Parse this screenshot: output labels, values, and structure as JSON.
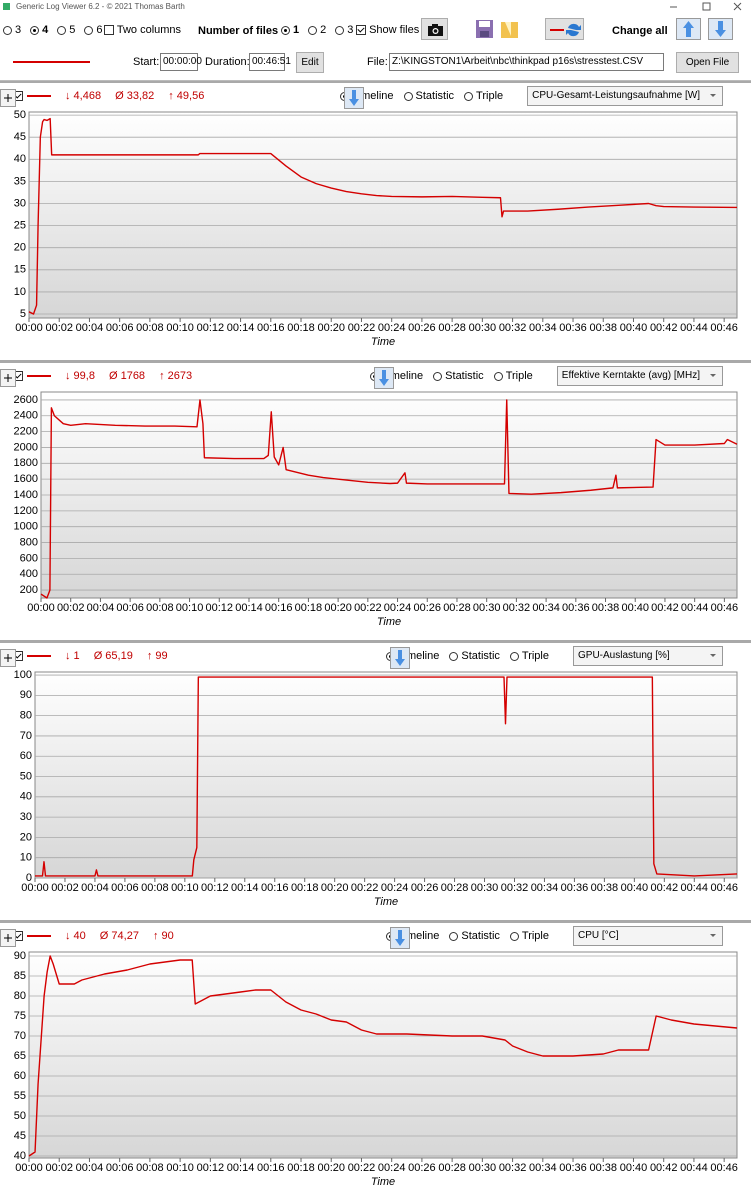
{
  "window": {
    "title": "Generic Log Viewer 6.2 - © 2021 Thomas Barth"
  },
  "toolbar": {
    "columns": [
      "3",
      "4",
      "5",
      "6"
    ],
    "selected_column": 1,
    "two_columns": "Two columns",
    "number_of_files_label": "Number of files",
    "files": [
      "1",
      "2",
      "3"
    ],
    "selected_file": 0,
    "show_files": "Show files",
    "change_all": "Change all",
    "start_label": "Start:",
    "start": "00:00:00",
    "duration_label": "Duration:",
    "duration": "00:46:51",
    "edit": "Edit",
    "file_label": "File:",
    "file": "Z:\\KINGSTON1\\Arbeit\\nbc\\thinkpad p16s\\stresstest.CSV",
    "open_file": "Open File"
  },
  "chart_data": [
    {
      "type": "line",
      "title": "CPU-Gesamt-Leistungsaufnahme [W]",
      "stats": [
        "↓ 4,468",
        "Ø 33,82",
        "↑ 49,56"
      ],
      "view_options": [
        "Timeline",
        "Statistic",
        "Triple"
      ],
      "selected_view": 0,
      "xlabel": "Time",
      "color": "#d40000",
      "grid": true,
      "xlim": [
        0,
        46.85
      ],
      "ylim": [
        4.1,
        50.7
      ],
      "yticks": [
        5,
        10,
        15,
        20,
        25,
        30,
        35,
        40,
        45,
        50
      ],
      "xticks": [
        {
          "value": 0,
          "label": "00:00"
        },
        {
          "value": 2,
          "label": "00:02"
        },
        {
          "value": 4,
          "label": "00:04"
        },
        {
          "value": 6,
          "label": "00:06"
        },
        {
          "value": 8,
          "label": "00:08"
        },
        {
          "value": 10,
          "label": "00:10"
        },
        {
          "value": 12,
          "label": "00:12"
        },
        {
          "value": 14,
          "label": "00:14"
        },
        {
          "value": 16,
          "label": "00:16"
        },
        {
          "value": 18,
          "label": "00:18"
        },
        {
          "value": 20,
          "label": "00:20"
        },
        {
          "value": 22,
          "label": "00:22"
        },
        {
          "value": 24,
          "label": "00:24"
        },
        {
          "value": 26,
          "label": "00:26"
        },
        {
          "value": 28,
          "label": "00:28"
        },
        {
          "value": 30,
          "label": "00:30"
        },
        {
          "value": 32,
          "label": "00:32"
        },
        {
          "value": 34,
          "label": "00:34"
        },
        {
          "value": 36,
          "label": "00:36"
        },
        {
          "value": 38,
          "label": "00:38"
        },
        {
          "value": 40,
          "label": "00:40"
        },
        {
          "value": 42,
          "label": "00:42"
        },
        {
          "value": 44,
          "label": "00:44"
        },
        {
          "value": 46,
          "label": "00:46"
        }
      ],
      "x": [
        0,
        0.3,
        0.5,
        0.6,
        0.75,
        0.9,
        1.0,
        1.2,
        1.4,
        1.5,
        2,
        4,
        6,
        8,
        10,
        11.2,
        11.3,
        14,
        16,
        17,
        18,
        19,
        20,
        21,
        22,
        23,
        24,
        26,
        28,
        30,
        31.2,
        31.3,
        31.4,
        33,
        35,
        37,
        39,
        41,
        41.5,
        42,
        44,
        46.85
      ],
      "values": [
        5.5,
        5,
        7,
        25,
        45,
        48.5,
        49,
        48.8,
        49.2,
        41,
        41,
        41,
        41,
        41,
        41,
        41,
        41.3,
        41.3,
        41.3,
        38.5,
        36,
        34.5,
        33.5,
        32.7,
        32.2,
        31.8,
        31.6,
        31.5,
        31.6,
        31.4,
        31.3,
        27,
        28.3,
        28.3,
        28.7,
        29.2,
        29.6,
        30,
        29.5,
        29.3,
        29.2,
        29.1
      ]
    },
    {
      "type": "line",
      "title": "Effektive Kerntakte (avg) [MHz]",
      "stats": [
        "↓ 99,8",
        "Ø 1768",
        "↑ 2673"
      ],
      "view_options": [
        "Timeline",
        "Statistic",
        "Triple"
      ],
      "selected_view": 0,
      "xlabel": "Time",
      "color": "#d40000",
      "grid": true,
      "xlim": [
        0,
        46.85
      ],
      "ylim": [
        100,
        2700
      ],
      "yticks": [
        200,
        400,
        600,
        800,
        1000,
        1200,
        1400,
        1600,
        1800,
        2000,
        2200,
        2400,
        2600
      ],
      "xticks": [
        {
          "value": 0,
          "label": "00:00"
        },
        {
          "value": 2,
          "label": "00:02"
        },
        {
          "value": 4,
          "label": "00:04"
        },
        {
          "value": 6,
          "label": "00:06"
        },
        {
          "value": 8,
          "label": "00:08"
        },
        {
          "value": 10,
          "label": "00:10"
        },
        {
          "value": 12,
          "label": "00:12"
        },
        {
          "value": 14,
          "label": "00:14"
        },
        {
          "value": 16,
          "label": "00:16"
        },
        {
          "value": 18,
          "label": "00:18"
        },
        {
          "value": 20,
          "label": "00:20"
        },
        {
          "value": 22,
          "label": "00:22"
        },
        {
          "value": 24,
          "label": "00:24"
        },
        {
          "value": 26,
          "label": "00:26"
        },
        {
          "value": 28,
          "label": "00:28"
        },
        {
          "value": 30,
          "label": "00:30"
        },
        {
          "value": 32,
          "label": "00:32"
        },
        {
          "value": 34,
          "label": "00:34"
        },
        {
          "value": 36,
          "label": "00:36"
        },
        {
          "value": 38,
          "label": "00:38"
        },
        {
          "value": 40,
          "label": "00:40"
        },
        {
          "value": 42,
          "label": "00:42"
        },
        {
          "value": 44,
          "label": "00:44"
        },
        {
          "value": 46,
          "label": "00:46"
        }
      ],
      "x": [
        0,
        0.4,
        0.6,
        0.7,
        0.9,
        1.5,
        2,
        3,
        5,
        7,
        9,
        10.5,
        10.7,
        10.9,
        11,
        13,
        15,
        15.3,
        15.5,
        15.7,
        16,
        16.3,
        16.5,
        18,
        19,
        20,
        22,
        23.5,
        24,
        24.5,
        24.6,
        26,
        28,
        30,
        31.2,
        31.35,
        31.5,
        33,
        35,
        37,
        38.5,
        38.7,
        38.8,
        41.2,
        41.4,
        42,
        44,
        46,
        46.2,
        46.85
      ],
      "values": [
        150,
        100,
        200,
        2500,
        2400,
        2300,
        2280,
        2300,
        2280,
        2270,
        2270,
        2260,
        2600,
        2300,
        1870,
        1860,
        1860,
        1900,
        2450,
        1880,
        1780,
        2000,
        1720,
        1650,
        1620,
        1600,
        1560,
        1545,
        1550,
        1680,
        1550,
        1540,
        1540,
        1540,
        1540,
        2600,
        1420,
        1410,
        1430,
        1460,
        1490,
        1650,
        1490,
        1500,
        2100,
        2030,
        2030,
        2050,
        2100,
        2040
      ]
    },
    {
      "type": "line",
      "title": "GPU-Auslastung [%]",
      "stats": [
        "↓ 1",
        "Ø 65,19",
        "↑ 99"
      ],
      "view_options": [
        "Timeline",
        "Statistic",
        "Triple"
      ],
      "selected_view": 0,
      "xlabel": "Time",
      "color": "#d40000",
      "grid": true,
      "xlim": [
        0,
        46.85
      ],
      "ylim": [
        0,
        101.5
      ],
      "yticks": [
        0,
        10,
        20,
        30,
        40,
        50,
        60,
        70,
        80,
        90,
        100
      ],
      "xticks": [
        {
          "value": 0,
          "label": "00:00"
        },
        {
          "value": 2,
          "label": "00:02"
        },
        {
          "value": 4,
          "label": "00:04"
        },
        {
          "value": 6,
          "label": "00:06"
        },
        {
          "value": 8,
          "label": "00:08"
        },
        {
          "value": 10,
          "label": "00:10"
        },
        {
          "value": 12,
          "label": "00:12"
        },
        {
          "value": 14,
          "label": "00:14"
        },
        {
          "value": 16,
          "label": "00:16"
        },
        {
          "value": 18,
          "label": "00:18"
        },
        {
          "value": 20,
          "label": "00:20"
        },
        {
          "value": 22,
          "label": "00:22"
        },
        {
          "value": 24,
          "label": "00:24"
        },
        {
          "value": 26,
          "label": "00:26"
        },
        {
          "value": 28,
          "label": "00:28"
        },
        {
          "value": 30,
          "label": "00:30"
        },
        {
          "value": 32,
          "label": "00:32"
        },
        {
          "value": 34,
          "label": "00:34"
        },
        {
          "value": 36,
          "label": "00:36"
        },
        {
          "value": 38,
          "label": "00:38"
        },
        {
          "value": 40,
          "label": "00:40"
        },
        {
          "value": 42,
          "label": "00:42"
        },
        {
          "value": 44,
          "label": "00:44"
        },
        {
          "value": 46,
          "label": "00:46"
        }
      ],
      "x": [
        0,
        0.5,
        0.6,
        0.7,
        4,
        4.1,
        4.2,
        10.5,
        10.6,
        10.8,
        10.9,
        12,
        30,
        31.3,
        31.4,
        31.5,
        41.2,
        41.3,
        41.5,
        44,
        46.85
      ],
      "values": [
        1,
        1,
        8,
        1,
        1,
        4,
        1,
        1,
        9,
        15,
        99,
        99,
        99,
        99,
        76,
        99,
        99,
        7,
        2,
        1,
        2
      ]
    },
    {
      "type": "line",
      "title": "CPU [°C]",
      "stats": [
        "↓ 40",
        "Ø 74,27",
        "↑ 90"
      ],
      "view_options": [
        "Timeline",
        "Statistic",
        "Triple"
      ],
      "selected_view": 0,
      "xlabel": "Time",
      "color": "#d40000",
      "grid": true,
      "xlim": [
        0,
        46.85
      ],
      "ylim": [
        39.5,
        91
      ],
      "yticks": [
        40,
        45,
        50,
        55,
        60,
        65,
        70,
        75,
        80,
        85,
        90
      ],
      "xticks": [
        {
          "value": 0,
          "label": "00:00"
        },
        {
          "value": 2,
          "label": "00:02"
        },
        {
          "value": 4,
          "label": "00:04"
        },
        {
          "value": 6,
          "label": "00:06"
        },
        {
          "value": 8,
          "label": "00:08"
        },
        {
          "value": 10,
          "label": "00:10"
        },
        {
          "value": 12,
          "label": "00:12"
        },
        {
          "value": 14,
          "label": "00:14"
        },
        {
          "value": 16,
          "label": "00:16"
        },
        {
          "value": 18,
          "label": "00:18"
        },
        {
          "value": 20,
          "label": "00:20"
        },
        {
          "value": 22,
          "label": "00:22"
        },
        {
          "value": 24,
          "label": "00:24"
        },
        {
          "value": 26,
          "label": "00:26"
        },
        {
          "value": 28,
          "label": "00:28"
        },
        {
          "value": 30,
          "label": "00:30"
        },
        {
          "value": 32,
          "label": "00:32"
        },
        {
          "value": 34,
          "label": "00:34"
        },
        {
          "value": 36,
          "label": "00:36"
        },
        {
          "value": 38,
          "label": "00:38"
        },
        {
          "value": 40,
          "label": "00:40"
        },
        {
          "value": 42,
          "label": "00:42"
        },
        {
          "value": 44,
          "label": "00:44"
        },
        {
          "value": 46,
          "label": "00:46"
        }
      ],
      "x": [
        0,
        0.4,
        0.6,
        1,
        1.2,
        1.4,
        1.6,
        2,
        3,
        3.5,
        5,
        6.5,
        8,
        10,
        10.8,
        11,
        11.5,
        12,
        13,
        14,
        15,
        16,
        16.5,
        17,
        18,
        19,
        20,
        21,
        22,
        23,
        25,
        28,
        30,
        31.5,
        32,
        33,
        34,
        36,
        38,
        39,
        41,
        41.5,
        42.5,
        44,
        46.85
      ],
      "values": [
        40,
        41,
        58,
        80,
        86,
        90,
        88,
        83,
        83,
        84,
        85.5,
        86.5,
        88,
        89,
        89,
        78,
        79,
        80,
        80.5,
        81,
        81.5,
        81.5,
        80,
        78.5,
        76.5,
        75.5,
        74,
        73.5,
        71.5,
        70.5,
        70.5,
        70,
        70,
        69,
        67.5,
        66,
        65,
        65,
        65.5,
        66.5,
        66.5,
        75,
        74,
        73,
        72
      ]
    }
  ]
}
